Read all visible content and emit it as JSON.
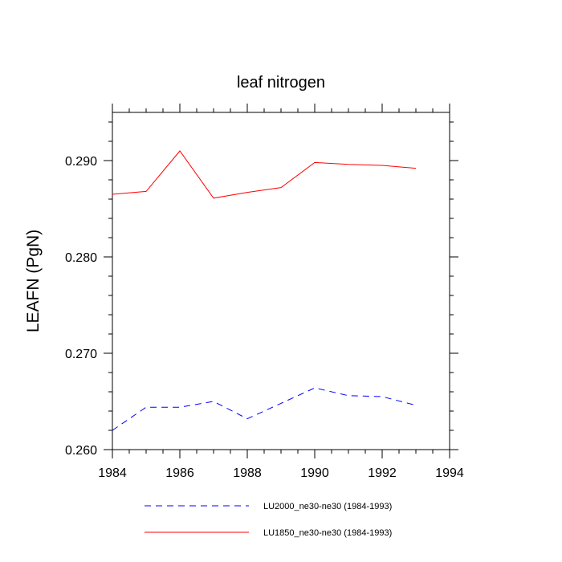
{
  "chart_data": {
    "type": "line",
    "title": "leaf nitrogen",
    "xlabel": "",
    "ylabel": "LEAFN  (PgN)",
    "xlim": [
      1984,
      1994
    ],
    "ylim": [
      0.26,
      0.295
    ],
    "x_ticks": [
      1984,
      1986,
      1988,
      1990,
      1992,
      1994
    ],
    "x_tick_labels": [
      "1984",
      "1986",
      "1988",
      "1990",
      "1992",
      "1994"
    ],
    "y_ticks": [
      0.26,
      0.27,
      0.28,
      0.29
    ],
    "y_tick_labels": [
      "0.260",
      "0.270",
      "0.280",
      "0.290"
    ],
    "x": [
      1984,
      1985,
      1986,
      1987,
      1988,
      1989,
      1990,
      1991,
      1992,
      1993
    ],
    "series": [
      {
        "name": "LU2000_ne30-ne30 (1984-1993)",
        "color": "#0000ff",
        "dash": "dashed",
        "values": [
          0.262,
          0.2644,
          0.2644,
          0.265,
          0.2632,
          0.2648,
          0.2664,
          0.2656,
          0.2655,
          0.2646
        ]
      },
      {
        "name": "LU1850_ne30-ne30 (1984-1993)",
        "color": "#ff0000",
        "dash": "solid",
        "values": [
          0.2865,
          0.2868,
          0.291,
          0.2861,
          0.2867,
          0.2872,
          0.2898,
          0.2896,
          0.2895,
          0.2892
        ]
      }
    ],
    "grid": false,
    "legend_position": "bottom-center"
  }
}
